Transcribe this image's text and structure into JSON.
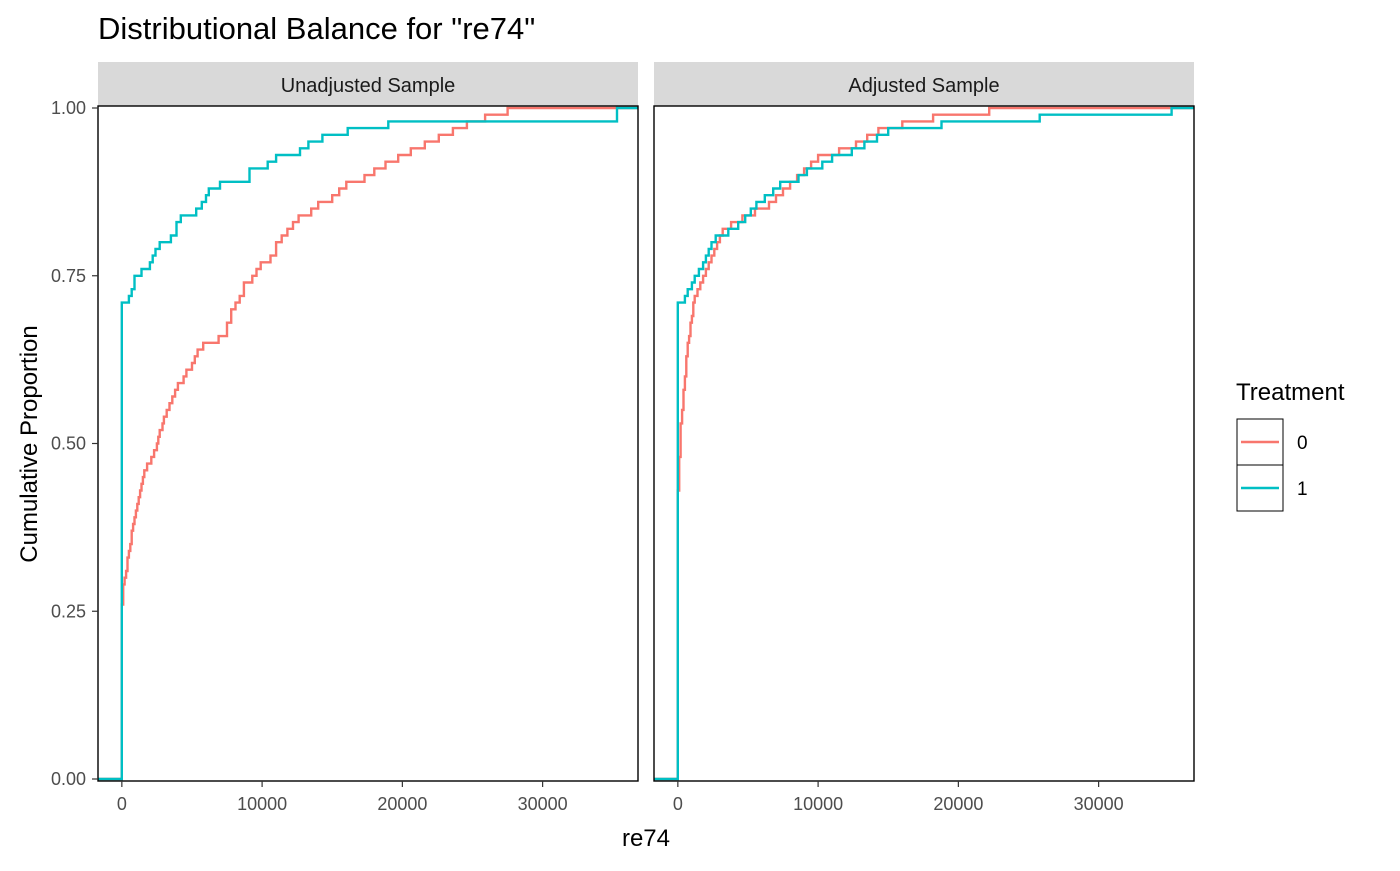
{
  "chart_data": {
    "type": "line",
    "subtype": "step (empirical cumulative distribution)",
    "title": "Distributional Balance for \"re74\"",
    "xlabel": "re74",
    "ylabel": "Cumulative Proportion",
    "xlim": [
      -1700,
      36800
    ],
    "ylim": [
      0,
      1
    ],
    "x_ticks": [
      0,
      10000,
      20000,
      30000
    ],
    "x_tick_labels": [
      "0",
      "10000",
      "20000",
      "30000"
    ],
    "y_ticks": [
      0,
      0.25,
      0.5,
      0.75,
      1
    ],
    "y_tick_labels": [
      "0.00",
      "0.25",
      "0.50",
      "0.75",
      "1.00"
    ],
    "grid": false,
    "legend": {
      "title": "Treatment",
      "position": "right",
      "entries": [
        {
          "label": "0",
          "color": "#F8766D"
        },
        {
          "label": "1",
          "color": "#00BFC4"
        }
      ]
    },
    "panels": [
      {
        "strip": "Unadjusted Sample",
        "series": [
          {
            "name": "0",
            "color": "#F8766D",
            "x": [
              -1700,
              0,
              0,
              100,
              200,
              300,
              400,
              500,
              600,
              700,
              800,
              900,
              1000,
              1100,
              1200,
              1300,
              1400,
              1500,
              1600,
              1700,
              1800,
              1900,
              2000,
              2100,
              2200,
              2300,
              2400,
              2500,
              2600,
              2700,
              2800,
              2900,
              3000,
              3200,
              3400,
              3600,
              3800,
              4000,
              4200,
              4400,
              4600,
              4800,
              5000,
              5200,
              5400,
              5600,
              5800,
              6000,
              6300,
              6600,
              6900,
              7200,
              7500,
              7800,
              8100,
              8400,
              8700,
              9000,
              9300,
              9600,
              9900,
              10200,
              10600,
              11000,
              11400,
              11800,
              12200,
              12600,
              13000,
              13500,
              14000,
              14500,
              15000,
              15500,
              16000,
              16700,
              17300,
              18000,
              18800,
              19700,
              20600,
              21600,
              22600,
              23600,
              24600,
              25800,
              25900,
              27500,
              29500,
              31700,
              33000,
              34500,
              35000,
              35100,
              36800
            ],
            "y": [
              0,
              0,
              0.26,
              0.29,
              0.3,
              0.31,
              0.33,
              0.34,
              0.35,
              0.37,
              0.38,
              0.39,
              0.4,
              0.41,
              0.42,
              0.43,
              0.44,
              0.45,
              0.46,
              0.46,
              0.47,
              0.47,
              0.47,
              0.48,
              0.48,
              0.49,
              0.49,
              0.5,
              0.51,
              0.52,
              0.52,
              0.53,
              0.54,
              0.55,
              0.56,
              0.57,
              0.58,
              0.59,
              0.59,
              0.6,
              0.61,
              0.61,
              0.62,
              0.63,
              0.64,
              0.64,
              0.65,
              0.65,
              0.65,
              0.65,
              0.66,
              0.66,
              0.68,
              0.7,
              0.71,
              0.72,
              0.74,
              0.74,
              0.75,
              0.76,
              0.77,
              0.77,
              0.78,
              0.8,
              0.81,
              0.82,
              0.83,
              0.84,
              0.84,
              0.85,
              0.86,
              0.86,
              0.87,
              0.88,
              0.89,
              0.89,
              0.9,
              0.91,
              0.92,
              0.93,
              0.94,
              0.95,
              0.96,
              0.97,
              0.98,
              0.98,
              0.99,
              1,
              1,
              1,
              1,
              1,
              1,
              1,
              1
            ]
          },
          {
            "name": "1",
            "color": "#00BFC4",
            "x": [
              -1700,
              0,
              0,
              500,
              700,
              900,
              1100,
              1400,
              1700,
              2000,
              2200,
              2400,
              2700,
              3500,
              3900,
              4200,
              4800,
              5300,
              5700,
              6000,
              6200,
              7000,
              8500,
              9100,
              9600,
              10400,
              11000,
              11800,
              12700,
              13300,
              14300,
              14800,
              16100,
              19000,
              22800,
              35300,
              36800
            ],
            "y": [
              0,
              0,
              0.71,
              0.72,
              0.73,
              0.75,
              0.75,
              0.76,
              0.76,
              0.77,
              0.78,
              0.79,
              0.8,
              0.81,
              0.83,
              0.84,
              0.84,
              0.85,
              0.86,
              0.87,
              0.88,
              0.89,
              0.89,
              0.91,
              0.91,
              0.92,
              0.93,
              0.93,
              0.94,
              0.95,
              0.96,
              0.96,
              0.97,
              0.98,
              0.98,
              1,
              1
            ]
          }
        ]
      },
      {
        "strip": "Adjusted Sample",
        "series": [
          {
            "name": "0",
            "color": "#F8766D",
            "x": [
              -1700,
              0,
              0,
              100,
              200,
              300,
              400,
              500,
              600,
              700,
              800,
              900,
              1000,
              1100,
              1200,
              1300,
              1400,
              1500,
              1600,
              1700,
              1800,
              1900,
              2000,
              2200,
              2400,
              2600,
              2800,
              3000,
              3200,
              3500,
              3800,
              4200,
              4600,
              5000,
              5500,
              6000,
              6500,
              7000,
              7500,
              8000,
              8500,
              9000,
              9500,
              10000,
              10500,
              11000,
              11500,
              12000,
              12700,
              13500,
              14300,
              15200,
              16000,
              17000,
              18200,
              19400,
              20600,
              22200,
              24000,
              26000,
              28000,
              30000,
              33000,
              35000,
              36800
            ],
            "y": [
              0,
              0,
              0.43,
              0.48,
              0.53,
              0.55,
              0.58,
              0.6,
              0.63,
              0.65,
              0.66,
              0.68,
              0.69,
              0.71,
              0.72,
              0.72,
              0.73,
              0.73,
              0.74,
              0.74,
              0.75,
              0.75,
              0.76,
              0.77,
              0.78,
              0.79,
              0.8,
              0.81,
              0.82,
              0.82,
              0.83,
              0.83,
              0.84,
              0.84,
              0.85,
              0.85,
              0.86,
              0.87,
              0.88,
              0.89,
              0.9,
              0.91,
              0.92,
              0.93,
              0.93,
              0.93,
              0.94,
              0.94,
              0.95,
              0.96,
              0.97,
              0.97,
              0.98,
              0.98,
              0.99,
              0.99,
              0.99,
              1,
              1,
              1,
              1,
              1,
              1,
              1,
              1
            ]
          },
          {
            "name": "1",
            "color": "#00BFC4",
            "x": [
              -1700,
              0,
              0,
              500,
              700,
              1000,
              1200,
              1500,
              1800,
              2000,
              2200,
              2400,
              2700,
              3200,
              3600,
              4300,
              4800,
              5200,
              5600,
              6200,
              6800,
              7300,
              8000,
              8600,
              9200,
              9600,
              10300,
              11000,
              11700,
              12400,
              13300,
              14200,
              15000,
              16500,
              18800,
              20700,
              22500,
              25800,
              27000,
              35200,
              36800
            ],
            "y": [
              0,
              0,
              0.71,
              0.72,
              0.73,
              0.74,
              0.75,
              0.76,
              0.77,
              0.78,
              0.79,
              0.8,
              0.81,
              0.81,
              0.82,
              0.83,
              0.84,
              0.85,
              0.86,
              0.87,
              0.88,
              0.89,
              0.89,
              0.9,
              0.91,
              0.91,
              0.92,
              0.93,
              0.93,
              0.94,
              0.95,
              0.96,
              0.97,
              0.97,
              0.98,
              0.98,
              0.98,
              0.99,
              0.99,
              1,
              1
            ]
          }
        ]
      }
    ]
  }
}
